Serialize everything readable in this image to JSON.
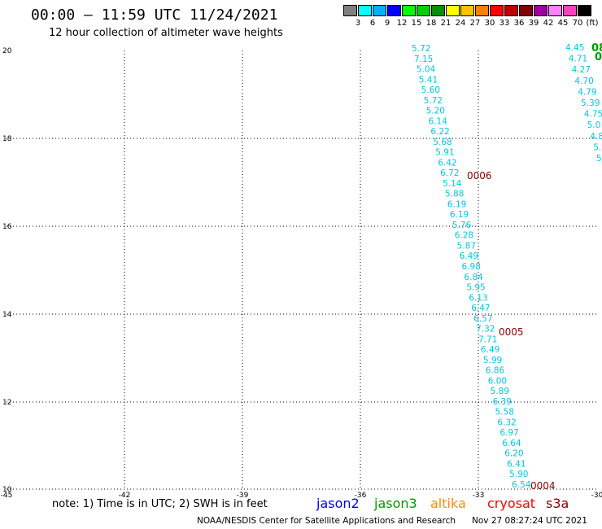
{
  "header": {
    "title": "00:00 – 11:59 UTC 11/24/2021",
    "subtitle": "12 hour collection of altimeter wave heights"
  },
  "legend": {
    "colors": [
      "#808080",
      "#00ffff",
      "#00b0ff",
      "#0000ff",
      "#00ff00",
      "#00d000",
      "#009000",
      "#ffff00",
      "#ffc000",
      "#ff8000",
      "#ff0000",
      "#c00000",
      "#800000",
      "#a000a0",
      "#ff80ff",
      "#ff40c0",
      "#000000"
    ],
    "labels": [
      "3",
      "6",
      "9",
      "12",
      "15",
      "18",
      "21",
      "24",
      "27",
      "30",
      "33",
      "36",
      "39",
      "42",
      "45",
      "70",
      "(ft)"
    ]
  },
  "map": {
    "lon_range": [
      -45,
      -30
    ],
    "lat_range": [
      10,
      20
    ],
    "x_ticks": [
      "-45",
      "-42",
      "-39",
      "-36",
      "-33",
      "-30"
    ],
    "y_ticks": [
      "20",
      "18",
      "16",
      "14",
      "12",
      "10"
    ],
    "track_main": {
      "values": [
        "5.72",
        "7.15",
        "5.04",
        "5.41",
        "5.60",
        "5.72",
        "5.20",
        "6.14",
        "6.22",
        "5.68",
        "5.91",
        "6.42",
        "6.72",
        "5.14",
        "5.88",
        "6.19",
        "6.19",
        "5.76",
        "6.28",
        "5.87",
        "6.49",
        "6.98",
        "6.84",
        "5.95",
        "6.13",
        "6.47",
        "6.57",
        "7.32",
        "7.71",
        "6.49",
        "5.99",
        "6.86",
        "6.00",
        "5.89",
        "6.39",
        "5.58",
        "6.32",
        "6.97",
        "6.64",
        "6.20",
        "6.41",
        "5.90",
        "6.54"
      ]
    },
    "track_right": {
      "values": [
        "4.45",
        "4.71",
        "4.27",
        "4.70",
        "4.79",
        "5.39",
        "4.75",
        "5.0",
        "4.8",
        "5.",
        "5."
      ]
    },
    "track_right_pass_ids": [
      "08",
      "0"
    ],
    "pass_labels": [
      "0006",
      "0005",
      "0004"
    ]
  },
  "footer": {
    "note": "note: 1) Time is in UTC; 2) SWH is in feet",
    "satellites": [
      {
        "name": "jason2",
        "color": "#0000ff"
      },
      {
        "name": "jason3",
        "color": "#009900"
      },
      {
        "name": "altika",
        "color": "#ff8c00"
      },
      {
        "name": "cryosat",
        "color": "#ff0000"
      },
      {
        "name": "s3a",
        "color": "#8b0000"
      }
    ],
    "credit": "NOAA/NESDIS Center for Satellite Applications and Research",
    "stamp": "Nov 27 08:27:24 UTC 2021"
  }
}
